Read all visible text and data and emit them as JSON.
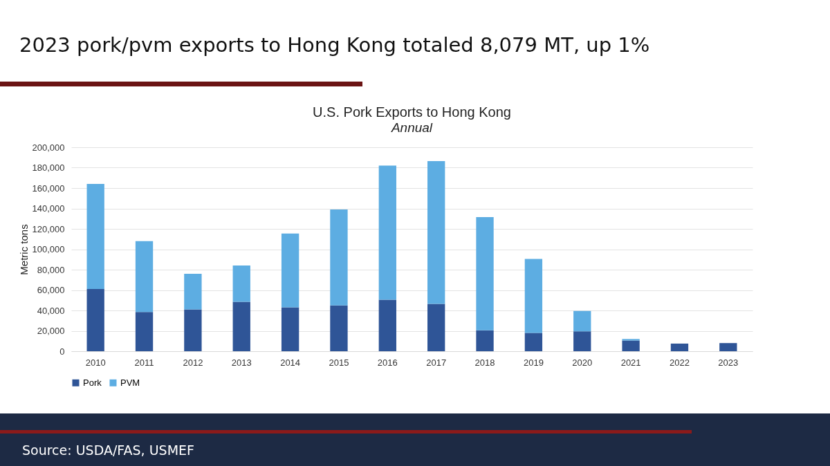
{
  "chart_data": {
    "type": "bar",
    "title": "2023 pork/pvm exports to Hong Kong totaled 8,079 MT, up 1%",
    "subtitle": "U.S. Pork Exports to Hong Kong",
    "ylabel": "Metric tons",
    "annotations": [
      "Annual",
      "Source: USDA/FAS, USMEF"
    ],
    "categories": [
      "2010",
      "2011",
      "2012",
      "2013",
      "2014",
      "2015",
      "2016",
      "2017",
      "2018",
      "2019",
      "2020",
      "2021",
      "2022",
      "2023"
    ],
    "stacked": true,
    "ylim": [
      0,
      200000
    ],
    "yticks": [
      0,
      {
        "value": 20000,
        "label": "20,000"
      },
      {
        "value": 40000,
        "label": "40,000"
      },
      {
        "value": 60000,
        "label": "60,000"
      },
      {
        "value": 80000,
        "label": "80,000"
      },
      {
        "value": 100000,
        "label": "100,000"
      },
      {
        "value": 120000,
        "label": "120,000"
      },
      {
        "value": 140000,
        "label": "140,000"
      },
      {
        "value": 160000,
        "label": "160,000"
      },
      {
        "value": 180000,
        "label": "180,000"
      },
      {
        "value": 200000,
        "label": "200,000"
      }
    ],
    "grid": "y",
    "legend": "bottom",
    "series": [
      {
        "name": "Pork",
        "color": "#2f5597",
        "values": [
          61000,
          38500,
          41000,
          48500,
          43000,
          45000,
          50500,
          46500,
          20500,
          18000,
          19500,
          10500,
          7500,
          8000
        ]
      },
      {
        "name": "PVM",
        "color": "#5dade2",
        "values": [
          103000,
          69500,
          35000,
          35500,
          72500,
          94000,
          131500,
          140000,
          111000,
          72500,
          20000,
          1500,
          0,
          0
        ]
      }
    ]
  }
}
